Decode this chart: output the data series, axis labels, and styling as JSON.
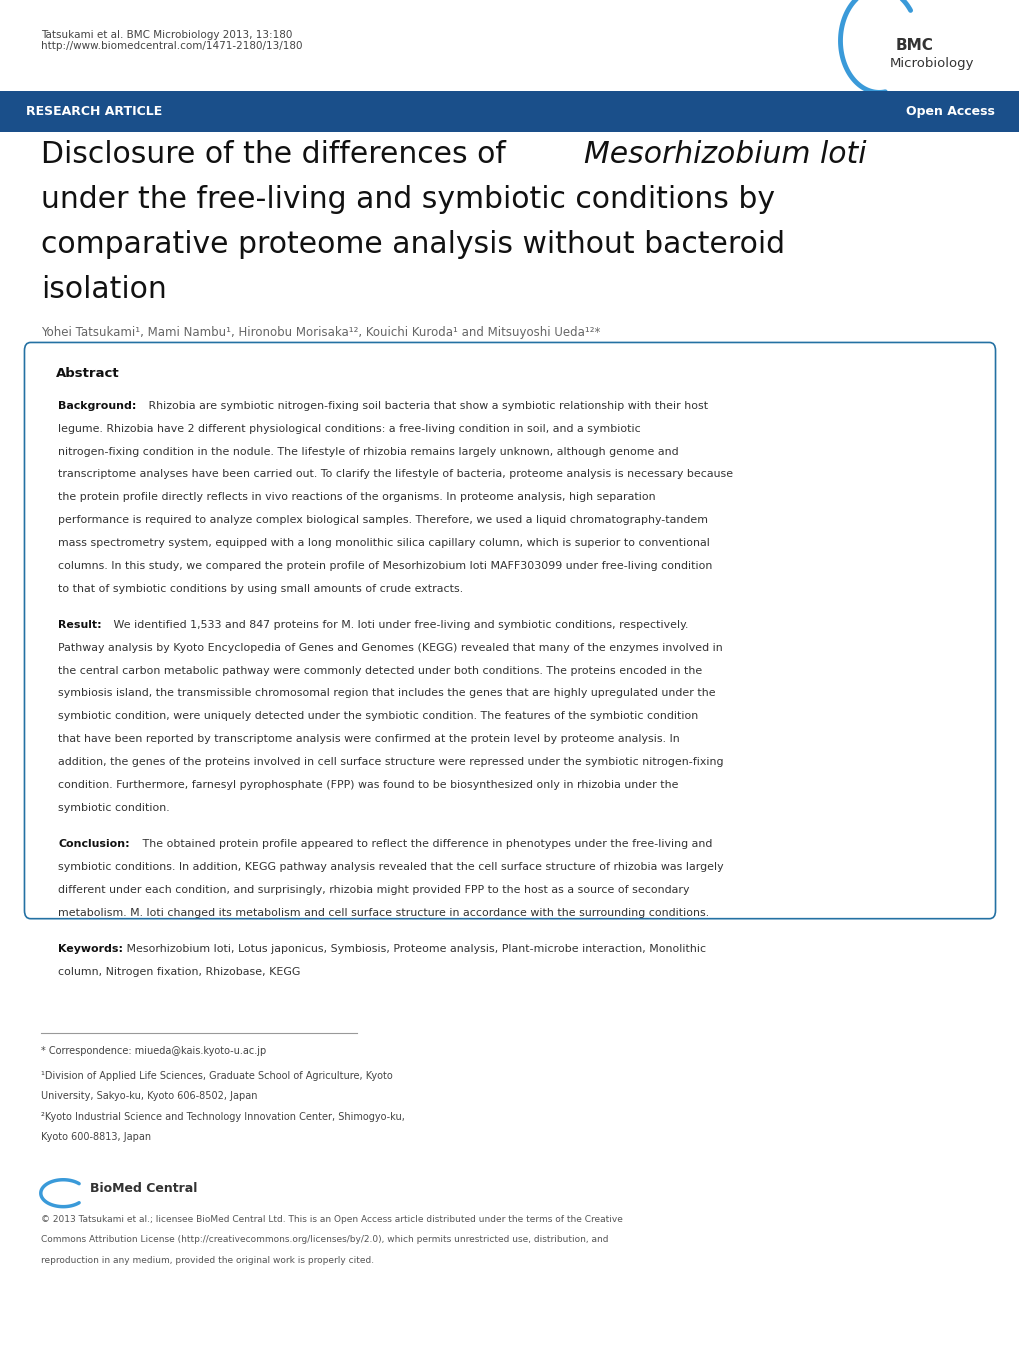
{
  "fig_width": 10.2,
  "fig_height": 13.59,
  "dpi": 100,
  "bg_color": "#ffffff",
  "header_citation": "Tatsukami et al. BMC Microbiology 2013, 13:180",
  "header_url": "http://www.biomedcentral.com/1471-2180/13/180",
  "journal_name_line1": "BMC",
  "journal_name_line2": "Microbiology",
  "banner_color": "#1a4f8a",
  "banner_text_left": "RESEARCH ARTICLE",
  "banner_text_right": "Open Access",
  "box_border_color": "#2471a3",
  "text_color": "#333333"
}
